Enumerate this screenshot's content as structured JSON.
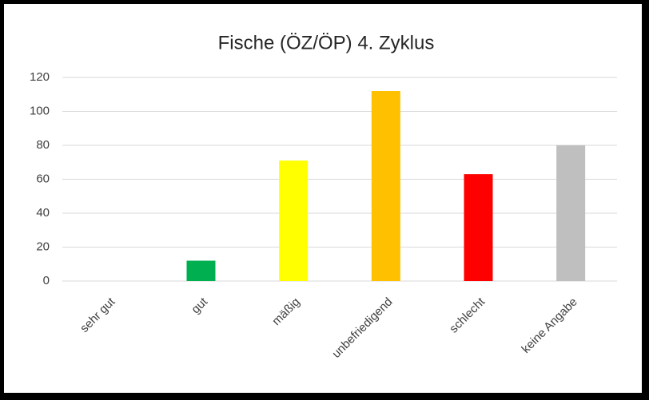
{
  "chart_data": {
    "type": "bar",
    "title": "Fische (ÖZ/ÖP) 4. Zyklus",
    "categories": [
      "sehr gut",
      "gut",
      "mäßig",
      "unbefriedigend",
      "schlecht",
      "keine Angabe"
    ],
    "values": [
      0,
      12,
      71,
      112,
      63,
      80
    ],
    "colors": [
      "#0070c0",
      "#00b050",
      "#ffff00",
      "#ffc000",
      "#ff0000",
      "#bfbfbf"
    ],
    "ylim": [
      0,
      120
    ],
    "yticks": [
      0,
      20,
      40,
      60,
      80,
      100,
      120
    ],
    "grid": true
  }
}
